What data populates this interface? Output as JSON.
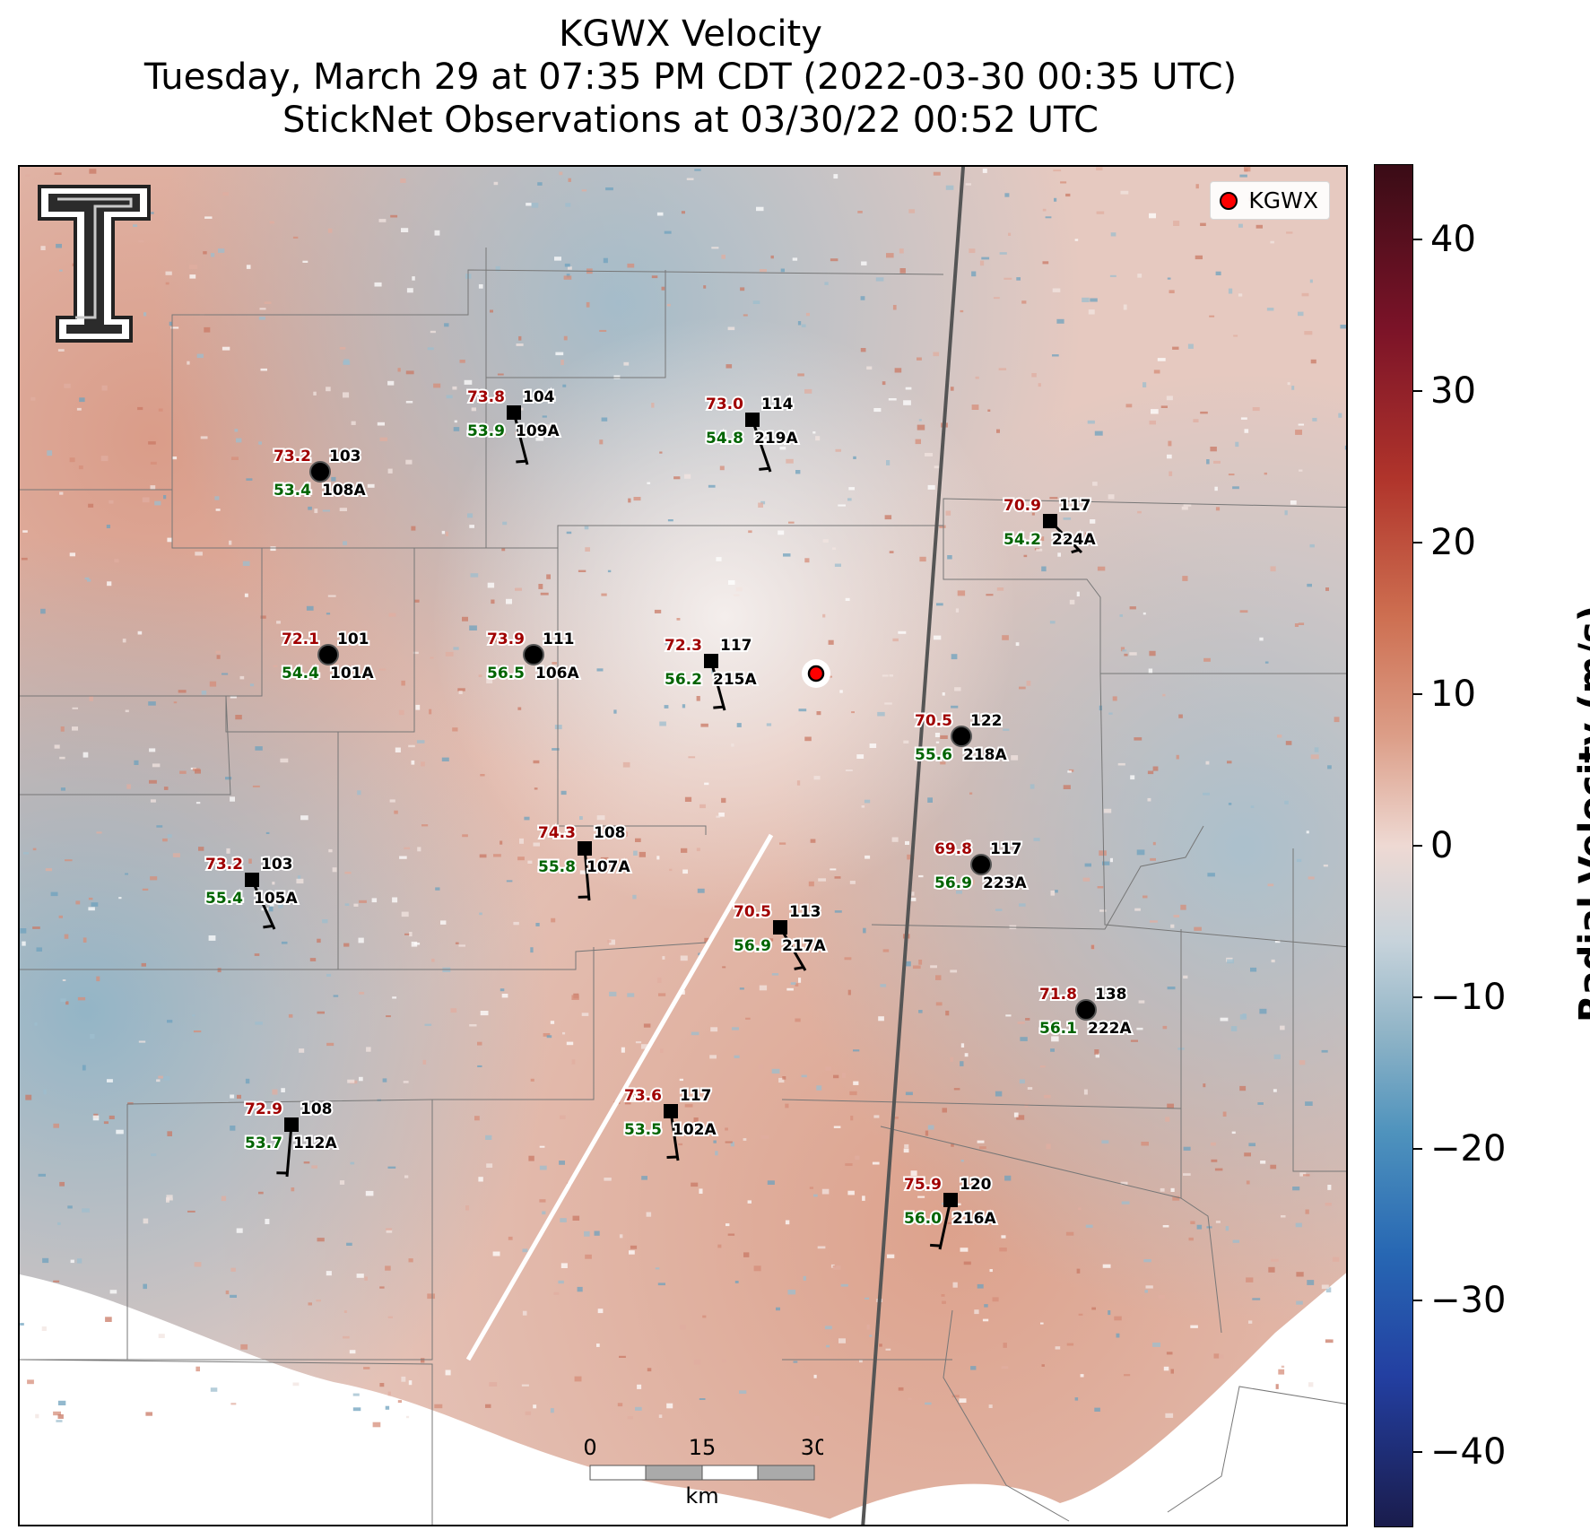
{
  "title": {
    "line1": "KGWX Velocity",
    "line2": "Tuesday, March 29 at 07:35 PM CDT (2022-03-30 00:35 UTC)",
    "line3": "StickNet Observations at 03/30/22 00:52 UTC"
  },
  "legend": {
    "label": "KGWX",
    "marker_color": "#ff0000"
  },
  "colorbar": {
    "title": "Radial Velocity (m/s)",
    "ticks": [
      "40",
      "30",
      "20",
      "10",
      "0",
      "−10",
      "−20",
      "−30",
      "−40"
    ],
    "tick_values": [
      40,
      30,
      20,
      10,
      0,
      -10,
      -20,
      -30,
      -40
    ],
    "range": [
      -45,
      45
    ]
  },
  "scalebar": {
    "ticks": [
      "0",
      "15",
      "30"
    ],
    "unit": "km"
  },
  "logo": {
    "name": "texas-tech-double-t-logo",
    "color": "#000000"
  },
  "colors": {
    "temperature_text": "#a00000",
    "dewpoint_text": "#006400",
    "velocity_inbound": "#8eb3c6",
    "velocity_outbound": "#dc9e88"
  },
  "stations": [
    {
      "id": "109A",
      "temp": "73.8",
      "dew": "53.9",
      "value": "104",
      "marker": "square"
    },
    {
      "id": "219A",
      "temp": "73.0",
      "dew": "54.8",
      "value": "114",
      "marker": "square"
    },
    {
      "id": "108A",
      "temp": "73.2",
      "dew": "53.4",
      "value": "103",
      "marker": "circle"
    },
    {
      "id": "224A",
      "temp": "70.9",
      "dew": "54.2",
      "value": "117",
      "marker": "square"
    },
    {
      "id": "101A",
      "temp": "72.1",
      "dew": "54.4",
      "value": "101",
      "marker": "circle"
    },
    {
      "id": "106A",
      "temp": "73.9",
      "dew": "56.5",
      "value": "111",
      "marker": "circle"
    },
    {
      "id": "215A",
      "temp": "72.3",
      "dew": "56.2",
      "value": "117",
      "marker": "square"
    },
    {
      "id": "218A",
      "temp": "70.5",
      "dew": "55.6",
      "value": "122",
      "marker": "circle"
    },
    {
      "id": "107A",
      "temp": "74.3",
      "dew": "55.8",
      "value": "108",
      "marker": "square"
    },
    {
      "id": "223A",
      "temp": "69.8",
      "dew": "56.9",
      "value": "117",
      "marker": "circle"
    },
    {
      "id": "105A",
      "temp": "73.2",
      "dew": "55.4",
      "value": "103",
      "marker": "square"
    },
    {
      "id": "217A",
      "temp": "70.5",
      "dew": "56.9",
      "value": "113",
      "marker": "square"
    },
    {
      "id": "222A",
      "temp": "71.8",
      "dew": "56.1",
      "value": "138",
      "marker": "circle"
    },
    {
      "id": "102A",
      "temp": "73.6",
      "dew": "53.5",
      "value": "117",
      "marker": "square"
    },
    {
      "id": "112A",
      "temp": "72.9",
      "dew": "53.7",
      "value": "108",
      "marker": "square"
    },
    {
      "id": "216A",
      "temp": "75.9",
      "dew": "56.0",
      "value": "120",
      "marker": "square"
    }
  ]
}
